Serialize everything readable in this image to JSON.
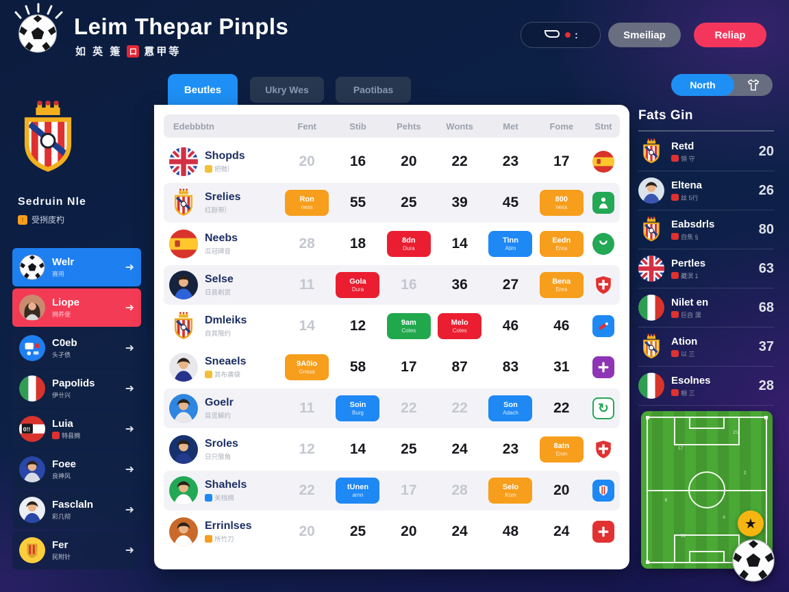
{
  "header": {
    "title": "Leim Thepar Pinpls",
    "subtitle": {
      "left": "如 英 箑",
      "badge": "口",
      "right": "慐甲等"
    },
    "status_pill": {
      "colon": ":"
    },
    "secondary_button": "Smeiliap",
    "primary_button": "Reliap"
  },
  "left_sidebar": {
    "team_name": "Sedruin Nle",
    "team_sub_badge": "!",
    "team_sub": "受挒庋杓",
    "menu": [
      {
        "label": "Welr",
        "sub": "赛用",
        "icon": "soccer-ball-icon",
        "style": "blue"
      },
      {
        "label": "Liope",
        "sub": "拥养使",
        "icon": "avatar-woman-icon",
        "style": "red"
      },
      {
        "label": "C0eb",
        "sub": "头孑债",
        "icon": "blue-badge-icon",
        "style": "dark"
      },
      {
        "label": "Papolids",
        "sub": "伊卄兴",
        "icon": "flag-italy-icon",
        "style": "dark"
      },
      {
        "label": "Luia",
        "sub": "特县拥",
        "icon": "flag-austria-icon",
        "style": "dark",
        "sub_badge": "#e03131"
      },
      {
        "label": "Foee",
        "sub": "良神风",
        "icon": "avatar-man-icon",
        "style": "dark"
      },
      {
        "label": "Fasclaln",
        "sub": "彩几彻",
        "icon": "avatar-man2-icon",
        "style": "dark"
      },
      {
        "label": "Fer",
        "sub": "民附针",
        "icon": "crest-spain-icon",
        "style": "dark"
      }
    ]
  },
  "tabs": [
    {
      "label": "Beutles",
      "active": true
    },
    {
      "label": "Ukry Wes",
      "active": false
    },
    {
      "label": "Paotibas",
      "active": false
    }
  ],
  "table": {
    "headers": [
      "Edebbbtn",
      "Fent",
      "Stib",
      "Pehts",
      "Wonts",
      "Met",
      "Fome",
      "Stnt"
    ],
    "rows": [
      {
        "icon": "flag-uk",
        "name": "Shopds",
        "sub": "把徵｝",
        "sub_badge": "#f2c037",
        "shade": false,
        "cells": [
          {
            "n": "20",
            "m": true
          },
          {
            "n": "16"
          },
          {
            "n": "20"
          },
          {
            "n": "22"
          },
          {
            "n": "23"
          },
          {
            "n": "17"
          }
        ],
        "end": "flag-spain"
      },
      {
        "icon": "crest-atm",
        "name": "Srelies",
        "sub": "红颜带｝",
        "shade": true,
        "cells": [
          {
            "b": "orange",
            "l": "Ron",
            "s": "ness"
          },
          {
            "n": "55"
          },
          {
            "n": "25"
          },
          {
            "n": "39"
          },
          {
            "n": "45"
          },
          {
            "b": "orange",
            "l": "800",
            "s": "ness"
          }
        ],
        "end": "player-green"
      },
      {
        "icon": "flag-spain",
        "name": "Neebs",
        "sub": "瓜冠碑音",
        "shade": false,
        "cells": [
          {
            "n": "28",
            "m": true
          },
          {
            "n": "18"
          },
          {
            "b": "red",
            "l": "8dn",
            "s": "Dura"
          },
          {
            "n": "14"
          },
          {
            "b": "blue",
            "l": "Tinn",
            "s": "Atim"
          },
          {
            "b": "orange",
            "l": "Eedn",
            "s": "Enra"
          }
        ],
        "end": "smile-green"
      },
      {
        "icon": "avatar1",
        "name": "Selse",
        "sub": "日县剃货",
        "shade": true,
        "cells": [
          {
            "n": "11",
            "m": true
          },
          {
            "b": "red",
            "l": "Gola",
            "s": "Dura"
          },
          {
            "n": "16",
            "m": true
          },
          {
            "n": "36"
          },
          {
            "n": "27"
          },
          {
            "b": "orange",
            "l": "Bena",
            "s": "Enra"
          }
        ],
        "end": "shield-red"
      },
      {
        "icon": "crest-atm2",
        "name": "Dmleiks",
        "sub": "自其限约",
        "shade": false,
        "cells": [
          {
            "n": "14",
            "m": true
          },
          {
            "n": "12"
          },
          {
            "b": "green",
            "l": "9am",
            "s": "Cotes"
          },
          {
            "b": "red",
            "l": "Melo",
            "s": "Cotes"
          },
          {
            "n": "46"
          },
          {
            "n": "46"
          }
        ],
        "end": "tool-blue"
      },
      {
        "icon": "avatar2",
        "name": "Sneaels",
        "sub": "其布袭袋",
        "sub_badge": "#f2c037",
        "shade": false,
        "cells": [
          {
            "b": "orange",
            "l": "9A0io",
            "s": "Gnssa"
          },
          {
            "n": "58"
          },
          {
            "n": "17"
          },
          {
            "n": "87"
          },
          {
            "n": "83"
          },
          {
            "n": "31"
          }
        ],
        "end": "plus-purple"
      },
      {
        "icon": "avatar3",
        "name": "Goelr",
        "sub": "目觅解约",
        "shade": true,
        "cells": [
          {
            "n": "11",
            "m": true
          },
          {
            "b": "blue",
            "l": "Soin",
            "s": "Burg"
          },
          {
            "n": "22",
            "m": true
          },
          {
            "n": "22",
            "m": true
          },
          {
            "b": "blue",
            "l": "Son",
            "s": "Adach"
          },
          {
            "n": "22"
          }
        ],
        "end": "refresh-green"
      },
      {
        "icon": "avatar4",
        "name": "Sroles",
        "sub": "日只限角",
        "shade": false,
        "cells": [
          {
            "n": "12",
            "m": true
          },
          {
            "n": "14"
          },
          {
            "n": "25"
          },
          {
            "n": "24"
          },
          {
            "n": "23"
          },
          {
            "b": "orange",
            "l": "8atn",
            "s": "Enm"
          }
        ],
        "end": "shield-red"
      },
      {
        "icon": "avatar5",
        "name": "Shahels",
        "sub": "关挡拥",
        "sub_badge": "#1e88f5",
        "shade": true,
        "cells": [
          {
            "n": "22",
            "m": true
          },
          {
            "b": "blue",
            "l": "tUnen",
            "s": "arnn"
          },
          {
            "n": "17",
            "m": true
          },
          {
            "n": "28",
            "m": true
          },
          {
            "b": "orange",
            "l": "Selo",
            "s": "Kom"
          },
          {
            "n": "20"
          }
        ],
        "end": "crest-blue"
      },
      {
        "icon": "avatar6",
        "name": "Errinlses",
        "sub": "所竹刀",
        "sub_badge": "#f79e1c",
        "shade": false,
        "cells": [
          {
            "n": "20",
            "m": true
          },
          {
            "n": "25"
          },
          {
            "n": "20"
          },
          {
            "n": "24"
          },
          {
            "n": "48"
          },
          {
            "n": "24"
          }
        ],
        "end": "cross-red"
      }
    ]
  },
  "right_sidebar": {
    "toggle_label": "North",
    "toggle_icon": "jersey-icon",
    "heading": "Fats Gin",
    "items": [
      {
        "icon": "crest-atm",
        "name": "Retd",
        "sub": "領 守",
        "value": "20"
      },
      {
        "icon": "avatar-w2",
        "name": "Eltena",
        "sub": "丝 5行",
        "value": "26"
      },
      {
        "icon": "crest-atm2",
        "name": "Eabsdrls",
        "sub": "自焦 §",
        "value": "80"
      },
      {
        "icon": "flag-uk",
        "name": "Pertles",
        "sub": "藏溟 1",
        "value": "63"
      },
      {
        "icon": "flag-italy",
        "name": "Nilet en",
        "sub": "巨自 潶",
        "value": "68"
      },
      {
        "icon": "crest-orange",
        "name": "Ation",
        "sub": "以 三",
        "value": "37"
      },
      {
        "icon": "flag-italy",
        "name": "Esolnes",
        "sub": "相 三",
        "value": "28"
      }
    ],
    "field_marks": [
      "17",
      "21",
      "8",
      "2",
      "11",
      "4"
    ]
  },
  "colors": {
    "accent_blue": "#1e90f5",
    "accent_red": "#f5365c",
    "accent_orange": "#f79e1c",
    "accent_green": "#23a855",
    "accent_purple": "#8e35b5",
    "field_green": "#4aa835",
    "star_yellow": "#f7b512",
    "card_bg": "#ffffff",
    "bg_navy": "#0d2148"
  }
}
